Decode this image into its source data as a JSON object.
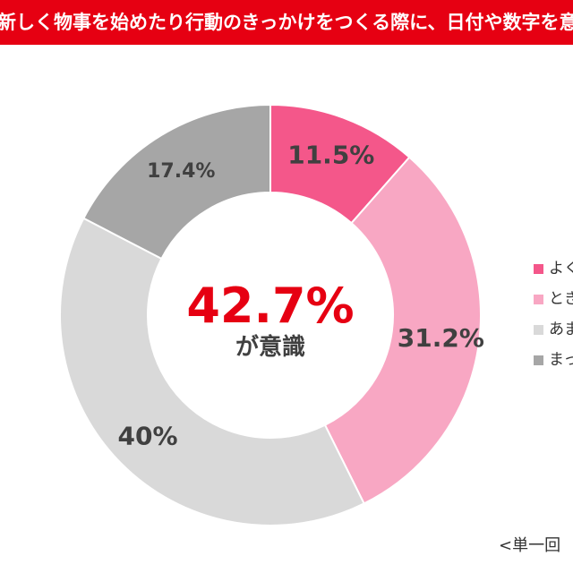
{
  "header": {
    "title": "新しく物事を始めたり行動のきっかけをつくる際に、日付や数字を意"
  },
  "center": {
    "value": "42.7%",
    "caption": "が意識"
  },
  "footnote": "<単一回",
  "colors": {
    "header_bg": "#e60012",
    "accent": "#e60012"
  },
  "chart_data": {
    "type": "pie",
    "donut": true,
    "categories": [
      "よく",
      "とき",
      "あま",
      "まっ"
    ],
    "values": [
      11.5,
      31.2,
      40,
      17.4
    ],
    "labels": [
      "11.5%",
      "31.2%",
      "40%",
      "17.4%"
    ],
    "colors": [
      "#f4578a",
      "#f8a7c3",
      "#d9d9d9",
      "#a6a6a6"
    ],
    "legend_position": "right"
  }
}
